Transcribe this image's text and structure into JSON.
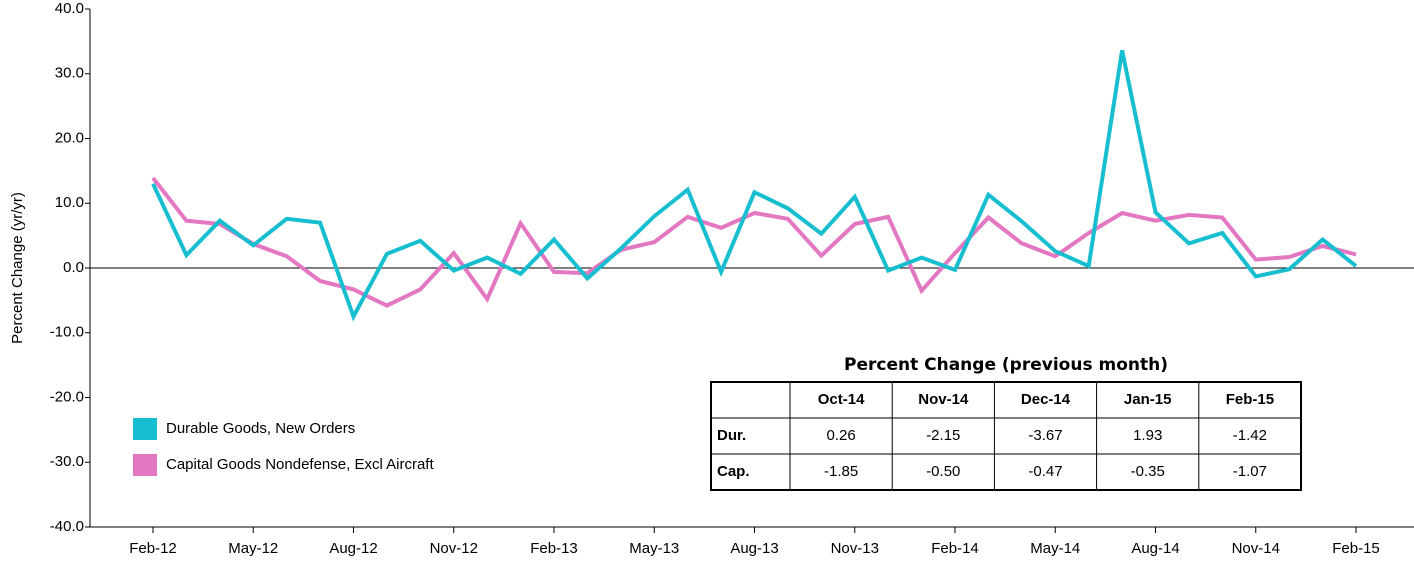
{
  "chart_data": {
    "type": "line",
    "y_label": "Percent Change (yr/yr)",
    "categories": [
      "Feb-12",
      null,
      null,
      "May-12",
      null,
      null,
      "Aug-12",
      null,
      null,
      "Nov-12",
      null,
      null,
      "Feb-13",
      null,
      null,
      "May-13",
      null,
      null,
      "Aug-13",
      null,
      null,
      "Nov-13",
      null,
      null,
      "Feb-14",
      null,
      null,
      "May-14",
      null,
      null,
      "Aug-14",
      null,
      null,
      "Nov-14",
      null,
      null,
      "Feb-15"
    ],
    "series": [
      {
        "name": "Durable Goods, New Orders",
        "color": "#17becf",
        "values": [
          13.0,
          2.0,
          7.3,
          3.5,
          7.6,
          7.0,
          -7.5,
          2.2,
          4.2,
          -0.4,
          1.6,
          -0.9,
          4.4,
          -1.6,
          3.0,
          8.0,
          12.1,
          -0.6,
          11.7,
          9.2,
          5.3,
          11.0,
          -0.4,
          1.6,
          -0.3,
          11.3,
          7.2,
          2.6,
          0.3,
          33.6,
          8.6,
          3.8,
          5.4,
          -1.3,
          -0.2,
          4.4,
          0.3
        ]
      },
      {
        "name": "Capital Goods Nondefense, Excl Aircraft",
        "color": "#e377c2",
        "values": [
          13.9,
          7.3,
          6.8,
          3.7,
          1.8,
          -2.0,
          -3.3,
          -5.8,
          -3.3,
          2.3,
          -4.8,
          6.9,
          -0.6,
          -0.8,
          2.8,
          4.0,
          7.9,
          6.2,
          8.5,
          7.6,
          1.9,
          6.8,
          7.9,
          -3.5,
          2.3,
          7.8,
          3.8,
          1.8,
          5.4,
          8.5,
          7.3,
          8.2,
          7.8,
          1.3,
          1.7,
          3.4,
          2.1
        ]
      }
    ],
    "ylim": [
      -40,
      40
    ],
    "yticks": [
      {
        "value": -40,
        "label": "-40.0"
      },
      {
        "value": -30,
        "label": "-30.0"
      },
      {
        "value": -20,
        "label": "-20.0"
      },
      {
        "value": -10,
        "label": "-10.0"
      },
      {
        "value": 0,
        "label": "0.0"
      },
      {
        "value": 10,
        "label": "10.0"
      },
      {
        "value": 20,
        "label": "20.0"
      },
      {
        "value": 30,
        "label": "30.0"
      },
      {
        "value": 40,
        "label": "40.0"
      }
    ],
    "grid": false,
    "legend": "lower-left",
    "table": {
      "title": "Percent Change (previous month)",
      "header": [
        "Oct-14",
        "Nov-14",
        "Dec-14",
        "Jan-15",
        "Feb-15"
      ],
      "rows": [
        [
          "Dur.",
          "0.26",
          "-2.15",
          "-3.67",
          "1.93",
          "-1.42"
        ],
        [
          "Cap.",
          "-1.85",
          "-0.50",
          "-0.47",
          "-0.35",
          "-1.07"
        ]
      ]
    }
  }
}
